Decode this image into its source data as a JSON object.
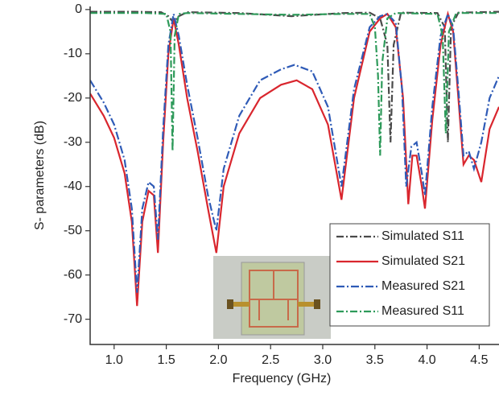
{
  "chart_data": {
    "type": "line",
    "x_label": "Frequency (GHz)",
    "y_label": "S- parameters (dB)",
    "xlim": [
      0.77,
      4.69
    ],
    "ylim": [
      -75.7,
      0.7
    ],
    "xticks": [
      {
        "value": 1,
        "label": "1.0"
      },
      1.5,
      {
        "value": 2,
        "label": "2.0"
      },
      2.5,
      {
        "value": 3,
        "label": "3.0"
      },
      3.5,
      {
        "value": 4,
        "label": "4.0"
      },
      4.5
    ],
    "yticks": [
      0,
      -10,
      -20,
      -30,
      -40,
      -50,
      -60,
      -70
    ],
    "series": [
      {
        "name": "Simulated S11",
        "color": "#4a4a4a",
        "dash": "9,3,2,3",
        "x": [
          0.77,
          1.2,
          1.45,
          1.52,
          1.57,
          1.62,
          1.7,
          2.2,
          2.7,
          3.2,
          3.45,
          3.55,
          3.62,
          3.65,
          3.68,
          3.75,
          4.1,
          4.17,
          4.2,
          4.23,
          4.3,
          4.69
        ],
        "values": [
          -0.5,
          -0.5,
          -0.6,
          -1.5,
          -3,
          -1.5,
          -0.6,
          -0.8,
          -1.5,
          -0.8,
          -0.7,
          -2,
          -8,
          -30,
          -8,
          -0.7,
          -0.8,
          -4,
          -30,
          -4,
          -0.7,
          -0.5
        ]
      },
      {
        "name": "Simulated S21",
        "color": "#d9262e",
        "dash": "none",
        "x": [
          0.77,
          0.9,
          1.0,
          1.1,
          1.17,
          1.22,
          1.27,
          1.33,
          1.38,
          1.42,
          1.47,
          1.52,
          1.57,
          1.62,
          1.7,
          1.8,
          1.9,
          1.98,
          2.05,
          2.2,
          2.4,
          2.6,
          2.75,
          2.9,
          3.05,
          3.18,
          3.3,
          3.45,
          3.55,
          3.62,
          3.7,
          3.77,
          3.82,
          3.86,
          3.9,
          3.95,
          3.98,
          4.05,
          4.13,
          4.2,
          4.25,
          4.3,
          4.35,
          4.4,
          4.45,
          4.52,
          4.6,
          4.69
        ],
        "values": [
          -19,
          -24,
          -29,
          -37,
          -48,
          -67,
          -48,
          -41,
          -42,
          -55,
          -30,
          -10,
          -2,
          -8,
          -20,
          -32,
          -45,
          -55,
          -40,
          -28,
          -20,
          -17,
          -16,
          -18,
          -26,
          -43,
          -20,
          -5,
          -2,
          -1,
          -4,
          -20,
          -44,
          -33,
          -33,
          -40,
          -45,
          -25,
          -8,
          -1,
          -5,
          -20,
          -35,
          -33,
          -34,
          -39,
          -27,
          -22
        ]
      },
      {
        "name": "Measured S21",
        "color": "#2f5bb7",
        "dash": "10,3,2,3",
        "x": [
          0.77,
          0.9,
          1.0,
          1.1,
          1.17,
          1.22,
          1.27,
          1.33,
          1.38,
          1.42,
          1.47,
          1.52,
          1.57,
          1.62,
          1.7,
          1.8,
          1.9,
          1.98,
          2.05,
          2.2,
          2.4,
          2.6,
          2.73,
          2.9,
          3.05,
          3.18,
          3.3,
          3.45,
          3.55,
          3.62,
          3.7,
          3.76,
          3.8,
          3.85,
          3.9,
          3.95,
          3.98,
          4.05,
          4.13,
          4.2,
          4.25,
          4.3,
          4.35,
          4.4,
          4.45,
          4.52,
          4.6,
          4.69
        ],
        "values": [
          -16,
          -21,
          -26,
          -34,
          -45,
          -64,
          -45,
          -39,
          -40,
          -52,
          -27,
          -8,
          -1,
          -6,
          -17,
          -29,
          -42,
          -50,
          -36,
          -24,
          -16,
          -13.5,
          -12.5,
          -14,
          -22,
          -40,
          -18,
          -4,
          -1.5,
          -1,
          -3,
          -18,
          -40,
          -31,
          -30,
          -37,
          -42,
          -22,
          -6,
          -1,
          -4,
          -18,
          -33,
          -32,
          -36,
          -30,
          -20,
          -15
        ]
      },
      {
        "name": "Measured S11",
        "color": "#2e9a5a",
        "dash": "9,3,2,3",
        "x": [
          0.77,
          1.3,
          1.5,
          1.54,
          1.56,
          1.58,
          1.62,
          1.7,
          2.2,
          2.7,
          3.2,
          3.45,
          3.5,
          3.53,
          3.55,
          3.57,
          3.62,
          3.7,
          4.1,
          4.15,
          4.18,
          4.21,
          4.28,
          4.69
        ],
        "values": [
          -0.8,
          -0.8,
          -1,
          -5,
          -32,
          -6,
          -1,
          -0.8,
          -1,
          -1.2,
          -1,
          -1,
          -4,
          -15,
          -33,
          -12,
          -2,
          -0.8,
          -1,
          -6,
          -28,
          -5,
          -0.8,
          -0.8
        ]
      }
    ]
  }
}
